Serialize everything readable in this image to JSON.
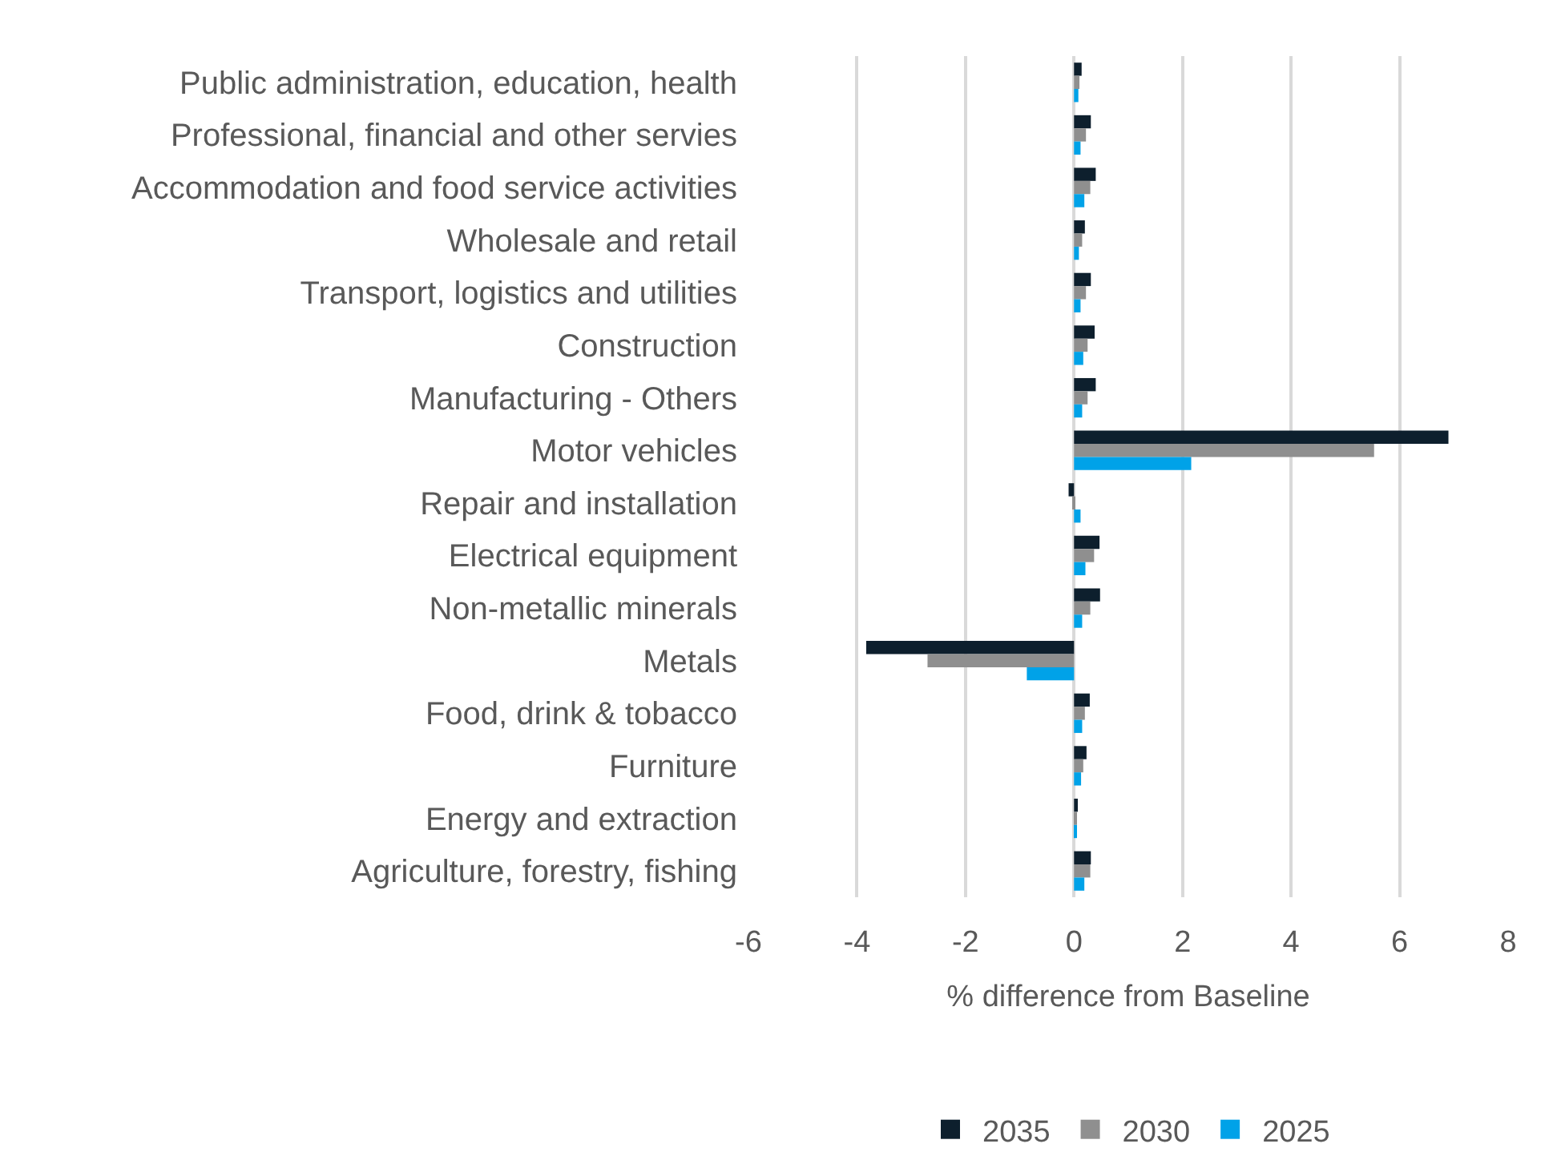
{
  "chart_data": {
    "type": "bar",
    "orientation": "horizontal",
    "categories": [
      "Public administration, education, health",
      "Professional, financial and other servies",
      "Accommodation and food service activities",
      "Wholesale and retail",
      "Transport, logistics and utilities",
      "Construction",
      "Manufacturing - Others",
      "Motor vehicles",
      "Repair and installation",
      "Electrical equipment",
      "Non-metallic minerals",
      "Metals",
      "Food, drink & tobacco",
      "Furniture",
      "Energy and extraction",
      "Agriculture, forestry, fishing"
    ],
    "series": [
      {
        "name": "2035",
        "color": "#0d1f2d",
        "values": [
          0.14,
          0.31,
          0.4,
          0.2,
          0.31,
          0.38,
          0.4,
          6.9,
          -0.1,
          0.47,
          0.48,
          -3.83,
          0.29,
          0.23,
          0.07,
          0.31
        ]
      },
      {
        "name": "2030",
        "color": "#8f8f8f",
        "values": [
          0.1,
          0.22,
          0.3,
          0.15,
          0.22,
          0.25,
          0.25,
          5.53,
          -0.03,
          0.37,
          0.3,
          -2.7,
          0.2,
          0.17,
          0.05,
          0.3
        ]
      },
      {
        "name": "2025",
        "color": "#00a2e8",
        "values": [
          0.08,
          0.12,
          0.19,
          0.09,
          0.12,
          0.17,
          0.15,
          2.16,
          0.12,
          0.21,
          0.15,
          -0.87,
          0.15,
          0.13,
          0.05,
          0.19
        ]
      }
    ],
    "xlabel": "% difference from Baseline",
    "xlim": [
      -6,
      8
    ],
    "xticks": [
      -6,
      -4,
      -2,
      0,
      2,
      4,
      6,
      8
    ],
    "grid": "x",
    "legend": "bottom"
  }
}
